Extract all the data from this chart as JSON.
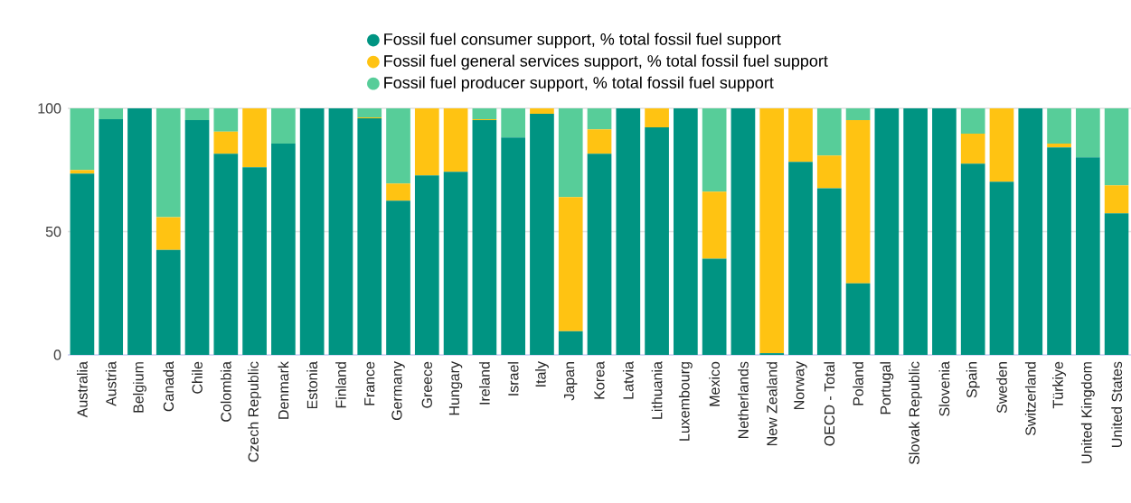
{
  "chart_data": {
    "type": "bar",
    "stacked": true,
    "categories": [
      "Australia",
      "Austria",
      "Belgium",
      "Canada",
      "Chile",
      "Colombia",
      "Czech Republic",
      "Denmark",
      "Estonia",
      "Finland",
      "France",
      "Germany",
      "Greece",
      "Hungary",
      "Ireland",
      "Israel",
      "Italy",
      "Japan",
      "Korea",
      "Latvia",
      "Lithuania",
      "Luxembourg",
      "Mexico",
      "Netherlands",
      "New Zealand",
      "Norway",
      "OECD - Total",
      "Poland",
      "Portugal",
      "Slovak Republic",
      "Slovenia",
      "Spain",
      "Sweden",
      "Switzerland",
      "Türkiye",
      "United Kingdom",
      "United States"
    ],
    "series": [
      {
        "name": "Fossil fuel consumer support, % total fossil fuel support",
        "color": "#009482",
        "values": [
          73.5,
          95.6,
          100,
          42.6,
          95.2,
          81.6,
          76.1,
          85.7,
          100,
          100,
          96.0,
          62.5,
          72.8,
          74.3,
          95.2,
          88.2,
          97.8,
          9.6,
          81.6,
          100,
          92.3,
          100,
          39.0,
          100,
          0.7,
          78.3,
          67.6,
          29.0,
          100,
          100,
          100,
          77.6,
          70.2,
          100,
          84.2,
          80.1,
          57.4
        ]
      },
      {
        "name": "Fossil fuel general services support, % total fossil fuel support",
        "color": "#ffc312",
        "values": [
          1.5,
          0,
          0,
          13.3,
          0,
          9.0,
          23.9,
          0,
          0,
          0,
          0.3,
          7.0,
          27.2,
          25.7,
          0.4,
          0,
          2.2,
          54.4,
          9.9,
          0,
          7.7,
          0,
          27.2,
          0,
          99.3,
          21.7,
          13.3,
          66.2,
          0,
          0,
          0,
          12.1,
          29.8,
          0,
          1.5,
          0,
          11.4
        ]
      },
      {
        "name": "Fossil fuel producer support, % total fossil fuel support",
        "color": "#57cd99",
        "values": [
          25.0,
          4.4,
          0,
          44.1,
          4.8,
          9.4,
          0,
          14.3,
          0,
          0,
          3.7,
          30.5,
          0,
          0,
          4.4,
          11.8,
          0,
          36.0,
          8.5,
          0,
          0,
          0,
          33.8,
          0,
          0,
          0,
          19.1,
          4.8,
          0,
          0,
          0,
          10.3,
          0,
          0,
          14.3,
          19.9,
          31.2
        ]
      }
    ],
    "ylim": [
      0,
      100
    ],
    "yticks": [
      0,
      50,
      100
    ],
    "grid": "y",
    "legend": "top",
    "marker": "circle"
  }
}
